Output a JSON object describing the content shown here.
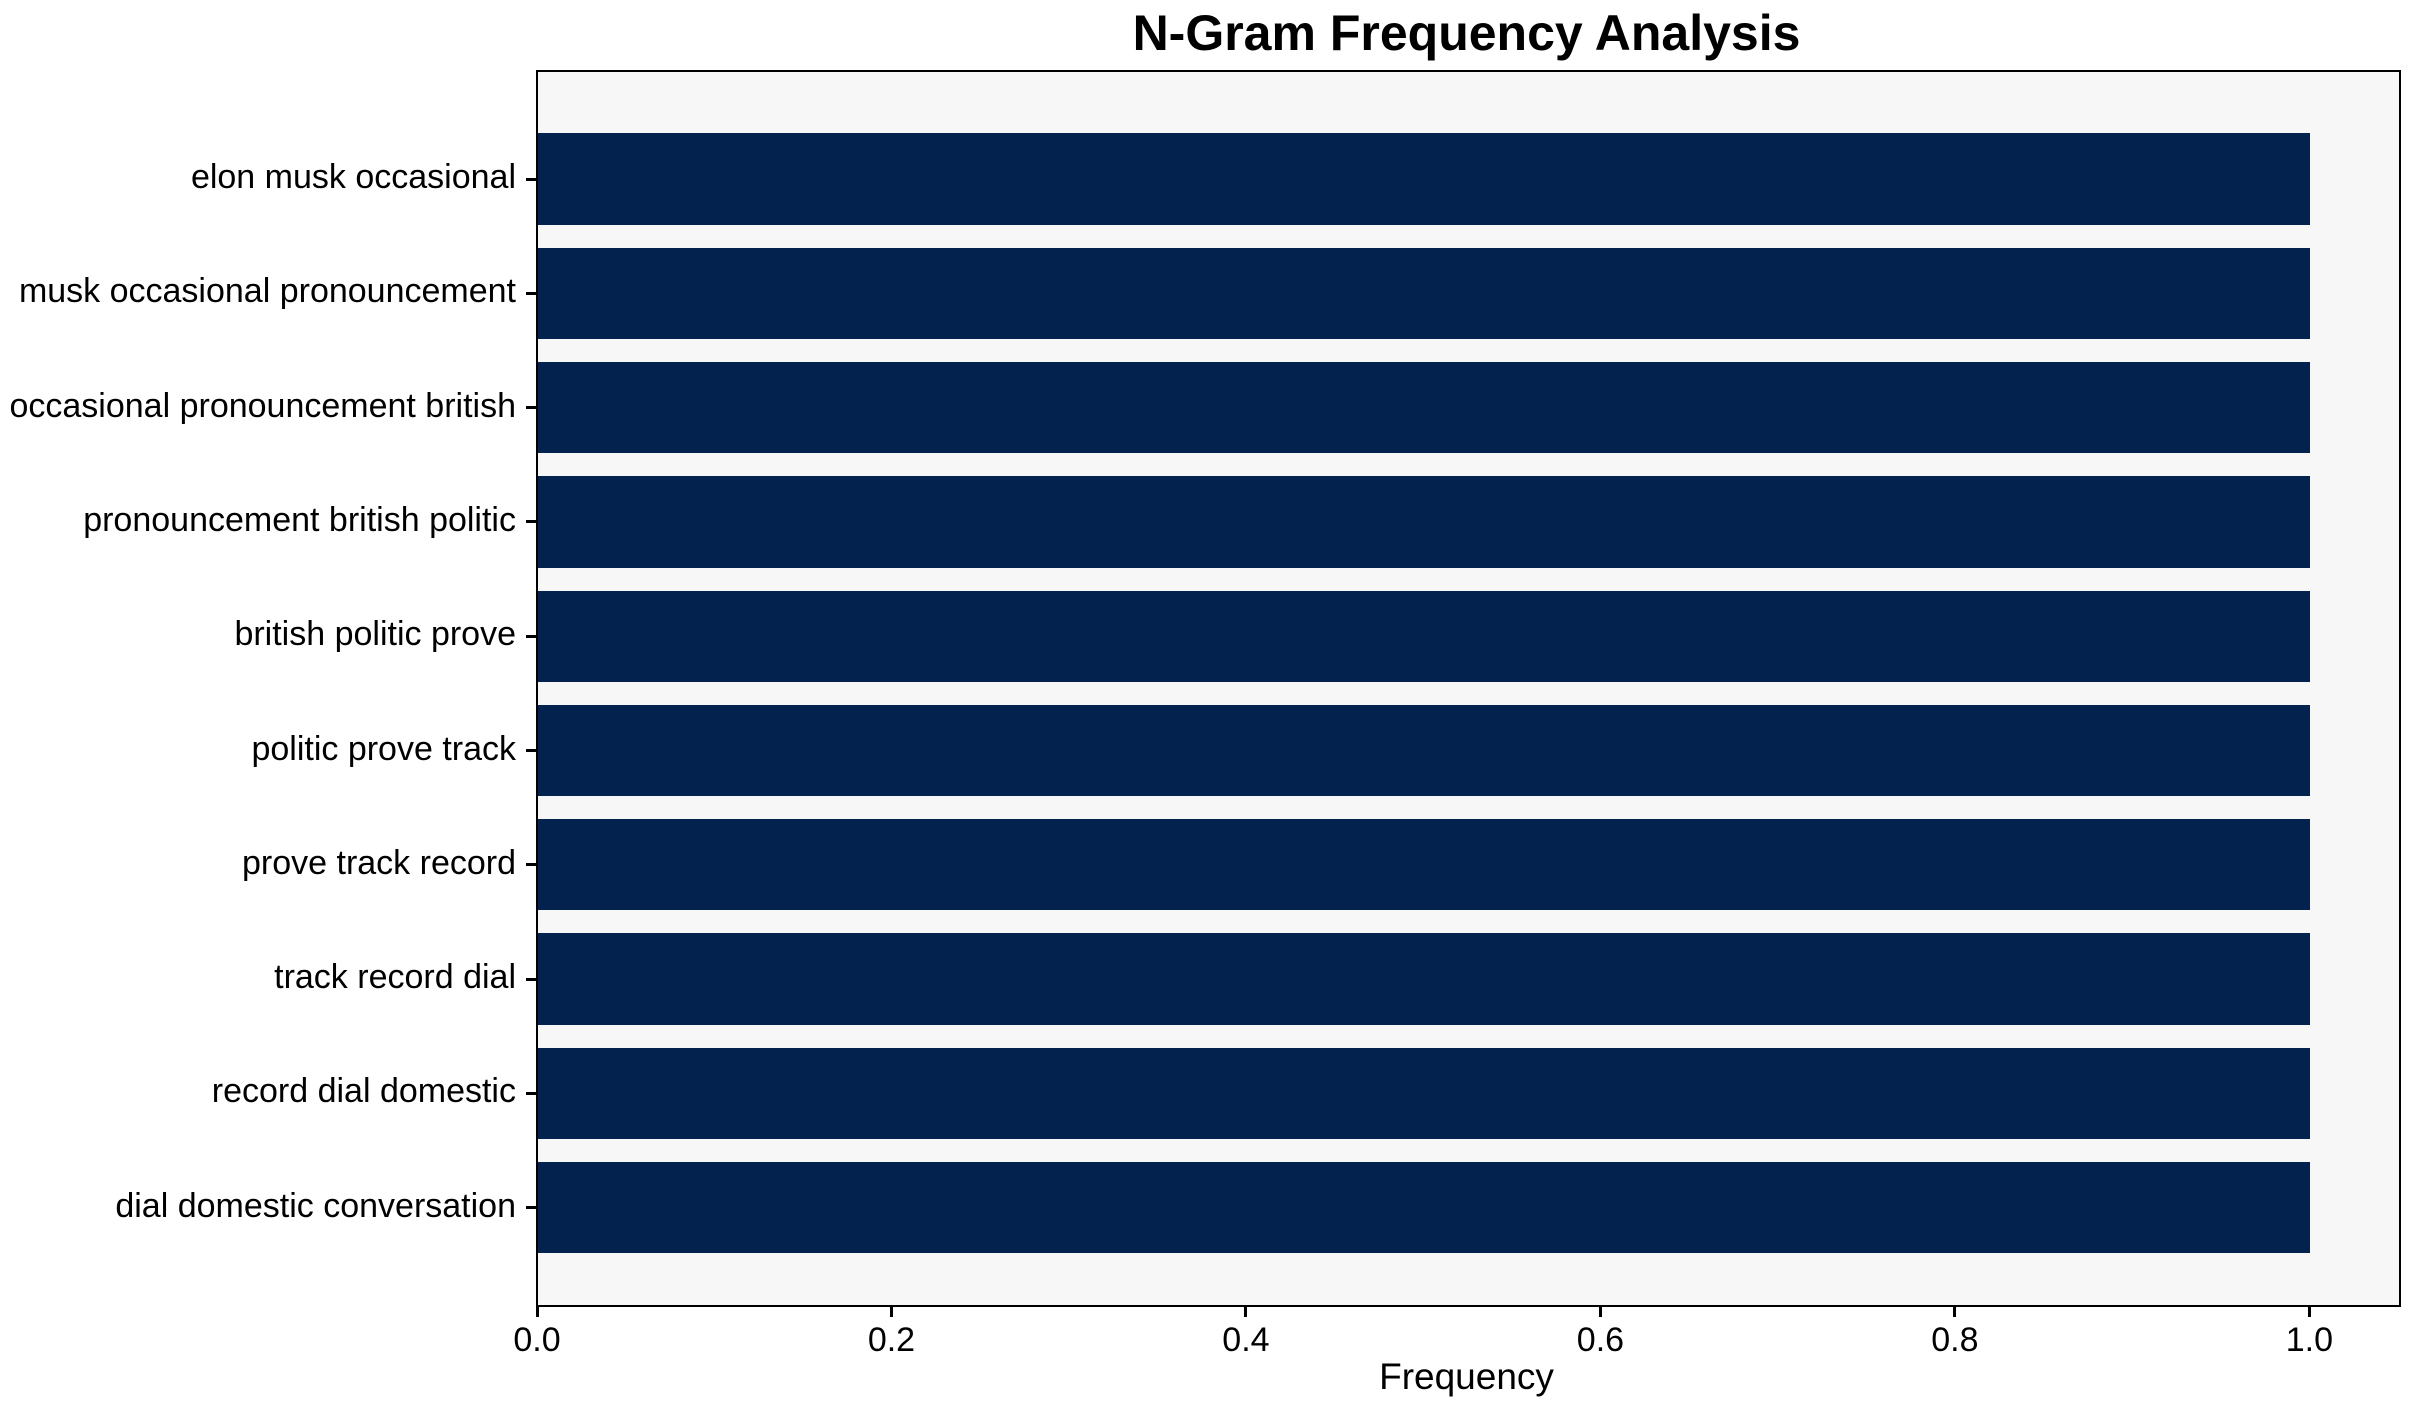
{
  "chart_data": {
    "type": "bar",
    "orientation": "horizontal",
    "title": "N-Gram Frequency Analysis",
    "xlabel": "Frequency",
    "ylabel": "",
    "categories": [
      "elon musk occasional",
      "musk occasional pronouncement",
      "occasional pronouncement british",
      "pronouncement british politic",
      "british politic prove",
      "politic prove track",
      "prove track record",
      "track record dial",
      "record dial domestic",
      "dial domestic conversation"
    ],
    "values": [
      1.0,
      1.0,
      1.0,
      1.0,
      1.0,
      1.0,
      1.0,
      1.0,
      1.0,
      1.0
    ],
    "x_tick_labels": [
      "0.0",
      "0.2",
      "0.4",
      "0.6",
      "0.8",
      "1.0"
    ],
    "x_tick_values": [
      0,
      0.2,
      0.4,
      0.6,
      0.8,
      1.0
    ],
    "xlim": [
      0,
      1.05
    ],
    "grid": false,
    "legend": null,
    "colors": {
      "bar": "#03234e",
      "plot_background": "#f7f7f7",
      "figure_background": "#ffffff",
      "text": "#000000",
      "spine": "#000000"
    }
  }
}
